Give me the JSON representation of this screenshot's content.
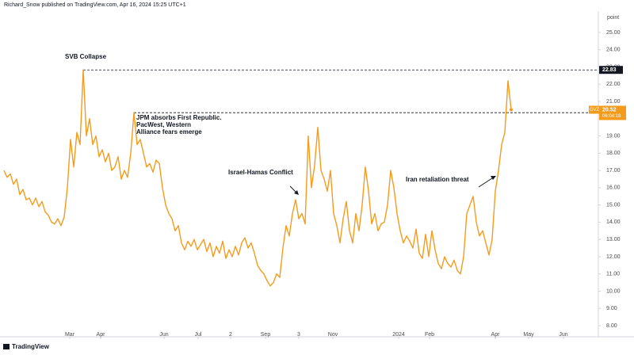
{
  "header": "Richard_Snow published on TradingView.com, Apr 16, 2024 15:25 UTC+1",
  "footer": "TradingView",
  "chart_data": {
    "type": "line",
    "unit_label": "point",
    "x": [
      0,
      1,
      2,
      3,
      4,
      5,
      6,
      7,
      8,
      9,
      10,
      11,
      12,
      13,
      14,
      15,
      16,
      17,
      18,
      19,
      20,
      21,
      22,
      23,
      24,
      25,
      26,
      27,
      28,
      29,
      30,
      31,
      32,
      33,
      34,
      35,
      36,
      37,
      38,
      39,
      40,
      41,
      42,
      43,
      44,
      45,
      46,
      47,
      48,
      49,
      50,
      51,
      52,
      53,
      54,
      55,
      56,
      57,
      58,
      59,
      60,
      61,
      62,
      63,
      64,
      65,
      66,
      67,
      68,
      69,
      70,
      71,
      72,
      73,
      74,
      75,
      76,
      77,
      78,
      79,
      80,
      81,
      82,
      83,
      84,
      85,
      86,
      87,
      88,
      89,
      90,
      91,
      92,
      93,
      94,
      95,
      96,
      97,
      98,
      99,
      100,
      101,
      102,
      103,
      104,
      105,
      106,
      107,
      108,
      109,
      110,
      111,
      112,
      113,
      114,
      115,
      116,
      117,
      118,
      119,
      120,
      121,
      122,
      123,
      124,
      125,
      126,
      127,
      128,
      129,
      130,
      131,
      132,
      133,
      134,
      135,
      136,
      137,
      138,
      139,
      140,
      141,
      142,
      143,
      144,
      145,
      146,
      147,
      148,
      149,
      150,
      151,
      152,
      153,
      154,
      155,
      156,
      157,
      158,
      159,
      160
    ],
    "series": [
      {
        "name": "GVZ",
        "color": "#f59b1b",
        "values": [
          17.0,
          16.6,
          16.8,
          16.2,
          16.5,
          15.6,
          15.9,
          15.3,
          15.4,
          15.0,
          15.4,
          14.9,
          15.2,
          14.6,
          14.4,
          14.0,
          13.9,
          14.2,
          13.8,
          14.3,
          16.0,
          18.8,
          17.2,
          19.2,
          18.5,
          22.83,
          19.0,
          20.0,
          18.5,
          19.0,
          17.8,
          18.2,
          17.5,
          18.0,
          17.0,
          17.2,
          17.8,
          16.5,
          17.0,
          16.6,
          18.0,
          20.35,
          18.5,
          18.8,
          18.0,
          17.2,
          17.4,
          16.9,
          17.6,
          17.4,
          16.0,
          15.0,
          14.5,
          14.2,
          13.5,
          13.8,
          12.8,
          12.4,
          12.9,
          12.6,
          13.0,
          12.4,
          12.7,
          13.0,
          12.3,
          12.8,
          12.0,
          12.6,
          12.2,
          12.9,
          11.9,
          12.4,
          12.0,
          12.6,
          12.1,
          12.8,
          13.1,
          12.5,
          12.8,
          12.2,
          11.5,
          11.2,
          11.0,
          10.6,
          10.3,
          10.5,
          11.0,
          10.8,
          12.5,
          13.8,
          13.2,
          14.5,
          15.3,
          14.2,
          14.5,
          13.9,
          19.0,
          16.0,
          17.3,
          19.5,
          17.0,
          16.5,
          15.8,
          17.0,
          14.5,
          13.8,
          12.8,
          14.2,
          15.2,
          13.5,
          12.8,
          14.5,
          13.5,
          15.0,
          17.2,
          15.8,
          13.9,
          14.5,
          13.5,
          13.9,
          14.0,
          15.0,
          17.0,
          16.0,
          14.5,
          13.5,
          12.8,
          13.2,
          12.9,
          12.5,
          13.6,
          12.2,
          11.9,
          13.3,
          12.0,
          13.5,
          12.4,
          11.6,
          11.3,
          12.0,
          11.6,
          11.4,
          11.8,
          11.2,
          11.0,
          12.0,
          14.5,
          15.0,
          15.5,
          14.0,
          13.2,
          13.5,
          12.8,
          12.1,
          13.0,
          15.8,
          17.0,
          18.5,
          19.2,
          22.2,
          20.52
        ]
      }
    ],
    "countdown": "06:04:18",
    "levels": [
      22.83,
      20.35
    ],
    "annotations": [
      "SVB Collapse",
      "JPM absorbs First Republic.",
      "PacWest, Western",
      "Alliance fears emerge",
      "Israel-Hamas Conflict",
      "Iran retaliation threat"
    ],
    "xlim": [
      -1.25,
      187.5
    ],
    "xticks": [
      {
        "value": 20.75,
        "label": "Mar"
      },
      {
        "value": 30.5,
        "label": "Apr"
      },
      {
        "value": 50.5,
        "label": "Jun"
      },
      {
        "value": 61.25,
        "label": "Jul"
      },
      {
        "value": 71.5,
        "label": "2"
      },
      {
        "value": 82.5,
        "label": "Sep"
      },
      {
        "value": 93,
        "label": "3"
      },
      {
        "value": 103.75,
        "label": "Nov"
      },
      {
        "value": 124.5,
        "label": "2024"
      },
      {
        "value": 134.25,
        "label": "Feb"
      },
      {
        "value": 155,
        "label": "Apr"
      },
      {
        "value": 165.5,
        "label": "May"
      },
      {
        "value": 176.5,
        "label": "Jun"
      }
    ],
    "ylim": [
      7.77,
      26.24
    ],
    "yticks": [
      {
        "value": 8,
        "label": "8.00"
      },
      {
        "value": 9,
        "label": "9.00"
      },
      {
        "value": 10,
        "label": "10.00"
      },
      {
        "value": 11,
        "label": "11.00"
      },
      {
        "value": 12,
        "label": "12.00"
      },
      {
        "value": 13,
        "label": "13.00"
      },
      {
        "value": 14,
        "label": "14.00"
      },
      {
        "value": 15,
        "label": "15.00"
      },
      {
        "value": 16,
        "label": "16.00"
      },
      {
        "value": 17,
        "label": "17.00"
      },
      {
        "value": 18,
        "label": "18.00"
      },
      {
        "value": 19,
        "label": "19.00"
      },
      {
        "value": 20,
        "label": "20.00"
      },
      {
        "value": 21,
        "label": "21.00"
      },
      {
        "value": 22,
        "label": "22.00"
      },
      {
        "value": 23,
        "label": "23.00"
      },
      {
        "value": 24,
        "label": "24.00"
      },
      {
        "value": 25,
        "label": "25.00"
      }
    ],
    "grid": false
  }
}
